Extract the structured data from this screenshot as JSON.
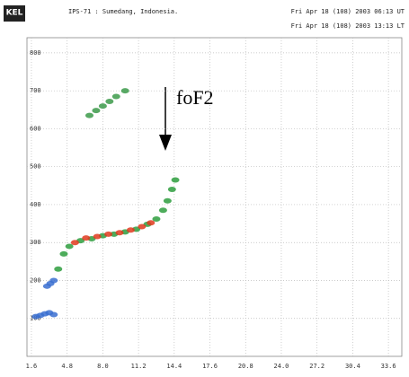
{
  "chart_data": {
    "type": "scatter",
    "logo": "KEL",
    "title": "IPS-71 : Sumedang, Indonesia.",
    "subtitle": [
      "Fri Apr 18 (108) 2003 06:13 UT",
      "Fri Apr 18 (108) 2003 13:13 LT"
    ],
    "annotation": "foF2",
    "xlim": [
      1.2,
      34.8
    ],
    "xticks": [
      1.6,
      4.8,
      {
        "value": 8.0,
        "label": "8.0"
      },
      11.2,
      14.4,
      17.6,
      20.8,
      {
        "value": 24.0,
        "label": "24.0"
      },
      27.2,
      30.4,
      33.6
    ],
    "ylim": [
      0,
      840
    ],
    "yticks": [
      100,
      200,
      300,
      400,
      500,
      600,
      700,
      800
    ],
    "grid": true,
    "series": [
      {
        "color": "#2e9e3e",
        "x": [
          4.0,
          4.5,
          5.0,
          6.0,
          7.0,
          8.0,
          9.0,
          10.0,
          11.0,
          12.0,
          12.8,
          13.4,
          13.8,
          14.2,
          14.5
        ],
        "values": [
          230,
          270,
          290,
          305,
          310,
          318,
          322,
          328,
          335,
          348,
          362,
          385,
          410,
          440,
          465
        ]
      },
      {
        "color": "#e03a1e",
        "x": [
          5.5,
          6.5,
          7.5,
          8.5,
          9.5,
          10.5,
          11.5,
          12.3
        ],
        "values": [
          300,
          312,
          316,
          322,
          326,
          333,
          342,
          352
        ]
      },
      {
        "color": "#3a6fd0",
        "x": [
          2.0,
          2.4,
          2.8,
          3.2,
          3.6,
          3.0,
          3.3,
          3.6
        ],
        "values": [
          105,
          108,
          112,
          115,
          110,
          185,
          192,
          200
        ]
      },
      {
        "color": "#3c9a4a",
        "x": [
          6.8,
          7.4,
          8.0,
          8.6,
          9.2,
          10.0
        ],
        "values": [
          635,
          648,
          660,
          672,
          685,
          700
        ]
      }
    ]
  }
}
